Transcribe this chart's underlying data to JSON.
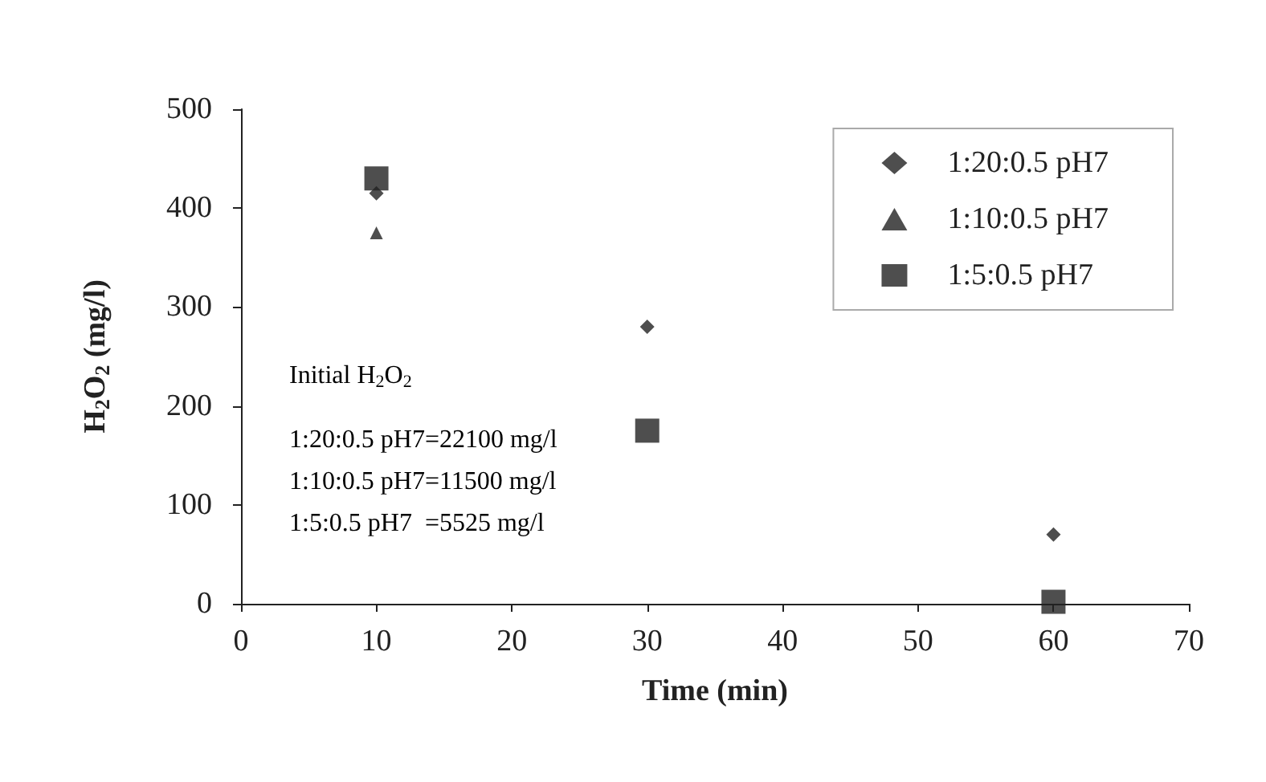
{
  "chart_data": {
    "type": "scatter",
    "xlabel": "Time (min)",
    "ylabel": "H$_{2}$O$_{2}$ (mg/l)",
    "x": [
      10,
      30,
      60
    ],
    "series": [
      {
        "name": "1:20:0.5 pH7",
        "color": "#222222",
        "marker": "diamond",
        "values": [
          415,
          280,
          70
        ]
      },
      {
        "name": "1:10:0.5 pH7",
        "color": "#222222",
        "marker": "triangle",
        "values": [
          375,
          null,
          null
        ]
      },
      {
        "name": "1:5:0.5 pH7",
        "color": "#222222",
        "marker": "square",
        "values": [
          430,
          175,
          2
        ]
      }
    ],
    "xlim": [
      0,
      70
    ],
    "xticks": [
      0,
      10,
      20,
      30,
      40,
      50,
      60,
      70
    ],
    "ylim": [
      0,
      500
    ],
    "yticks": [
      0,
      100,
      200,
      300,
      400,
      500
    ],
    "grid": false,
    "legend": "top right",
    "annotations": [
      "Initial H$_{2}$O$_{2}$",
      "1:20:0.5 pH7=22100 mg/l",
      "1:10:0.5 pH7=11500 mg/l",
      "1:5:0.5 pH7  =5525 mg/l"
    ]
  }
}
